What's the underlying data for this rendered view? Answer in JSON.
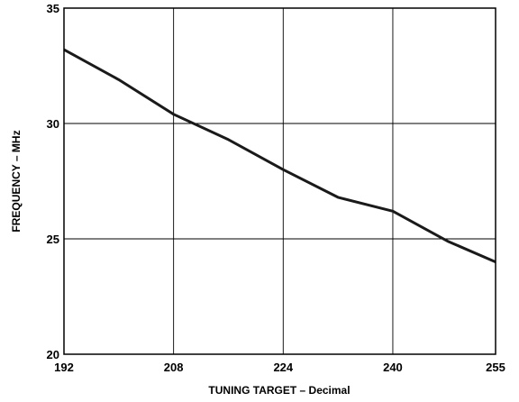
{
  "chart_data": {
    "type": "line",
    "title": "",
    "xlabel": "TUNING TARGET – Decimal",
    "ylabel": "FREQUENCY – MHz",
    "x_ticks": [
      192,
      208,
      224,
      240,
      255
    ],
    "y_ticks": [
      20,
      25,
      30,
      35
    ],
    "xlim": [
      192,
      255
    ],
    "ylim": [
      20,
      35
    ],
    "grid": true,
    "series": [
      {
        "x": [
          192,
          200,
          208,
          216,
          224,
          232,
          240,
          248,
          255
        ],
        "y": [
          33.2,
          31.9,
          30.4,
          29.3,
          28.0,
          26.8,
          26.2,
          24.9,
          24.0
        ]
      }
    ],
    "colors": {
      "line": "#1a1a1a",
      "grid": "#000000",
      "frame": "#000000"
    }
  }
}
